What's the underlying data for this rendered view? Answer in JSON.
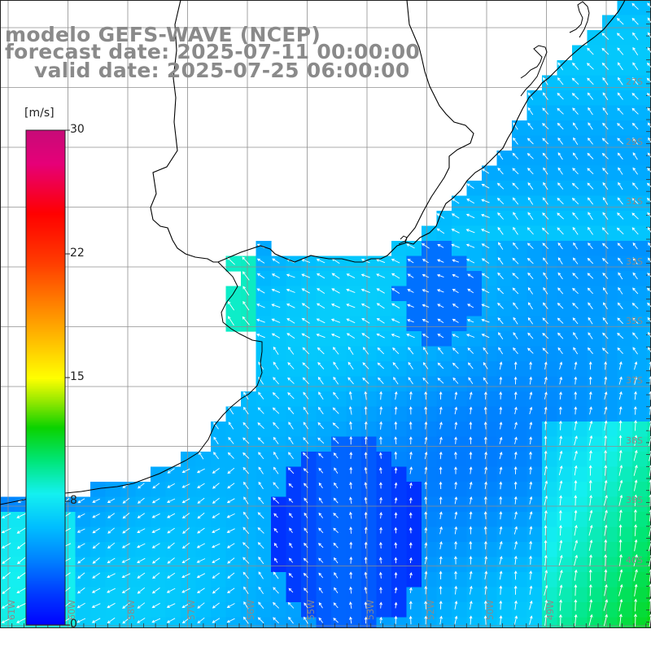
{
  "titles": {
    "model": "modelo GEFS-WAVE (NCEP)",
    "forecast": "forecast date: 2025-07-11 00:00:00",
    "valid": "valid date: 2025-07-25 06:00:00"
  },
  "colorbar": {
    "unit": "[m/s]",
    "ticks": [
      "30",
      "22",
      "15",
      "8",
      "0"
    ],
    "colors": [
      "#0000ff",
      "#0a64ff",
      "#14a0ff",
      "#16dcff",
      "#18ffe6",
      "#00e65a",
      "#28d200",
      "#b4f000",
      "#ffff00",
      "#ffa500",
      "#ff4600",
      "#ff0000",
      "#e6007a",
      "#c80a78"
    ]
  },
  "colors": {
    "land": "#ffffff",
    "coast": "#000000",
    "grid": "#8f8f8f",
    "arrow": "#ffffff",
    "label": "#8a8a8a"
  },
  "lat_labels": [
    "27S",
    "29S",
    "31S",
    "33S",
    "35S",
    "37S",
    "38S",
    "39S",
    "40S"
  ],
  "lon_labels": [
    "61W",
    "60W",
    "58W",
    "57W",
    "56W",
    "55W",
    "53W",
    "52W",
    "50W",
    "49W"
  ],
  "legend_arrow_icon": "wind-arrow-icon"
}
